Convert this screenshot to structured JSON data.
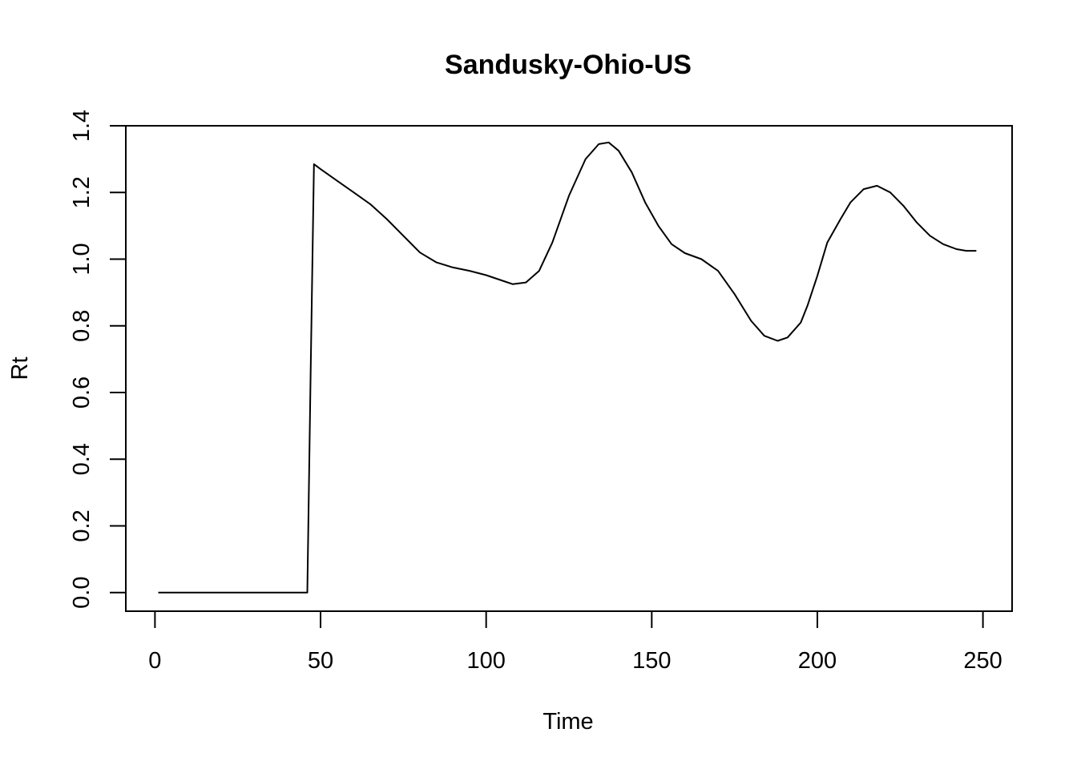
{
  "chart_data": {
    "type": "line",
    "title": "Sandusky-Ohio-US",
    "xlabel": "Time",
    "ylabel": "Rt",
    "xlim": [
      -8.8,
      258.8
    ],
    "ylim": [
      -0.056,
      1.4
    ],
    "x_ticks": [
      0,
      50,
      100,
      150,
      200,
      250
    ],
    "x_tick_labels": [
      "0",
      "50",
      "100",
      "150",
      "200",
      "250"
    ],
    "y_ticks": [
      0.0,
      0.2,
      0.4,
      0.6,
      0.8,
      1.0,
      1.2,
      1.4
    ],
    "y_tick_labels": [
      "0.0",
      "0.2",
      "0.4",
      "0.6",
      "0.8",
      "1.0",
      "1.2",
      "1.4"
    ],
    "grid": false,
    "legend": "none",
    "color": "#000000",
    "series": [
      {
        "x": [
          1,
          10,
          20,
          30,
          40,
          46,
          47,
          48,
          50,
          55,
          60,
          65,
          70,
          75,
          80,
          85,
          90,
          95,
          100,
          105,
          108,
          112,
          116,
          120,
          125,
          130,
          134,
          137,
          140,
          144,
          148,
          152,
          156,
          160,
          165,
          170,
          175,
          180,
          184,
          188,
          191,
          195,
          197,
          200,
          203,
          207,
          210,
          214,
          218,
          222,
          226,
          230,
          234,
          238,
          242,
          245,
          248
        ],
        "y": [
          0.0,
          0.0,
          0.0,
          0.0,
          0.0,
          0.0,
          0.65,
          1.285,
          1.27,
          1.235,
          1.2,
          1.165,
          1.12,
          1.07,
          1.02,
          0.99,
          0.975,
          0.965,
          0.952,
          0.935,
          0.925,
          0.93,
          0.965,
          1.05,
          1.19,
          1.3,
          1.345,
          1.35,
          1.325,
          1.26,
          1.17,
          1.1,
          1.045,
          1.018,
          1.0,
          0.965,
          0.895,
          0.815,
          0.77,
          0.755,
          0.765,
          0.81,
          0.86,
          0.95,
          1.05,
          1.12,
          1.17,
          1.21,
          1.22,
          1.2,
          1.16,
          1.11,
          1.07,
          1.045,
          1.03,
          1.025,
          1.025
        ]
      }
    ]
  }
}
